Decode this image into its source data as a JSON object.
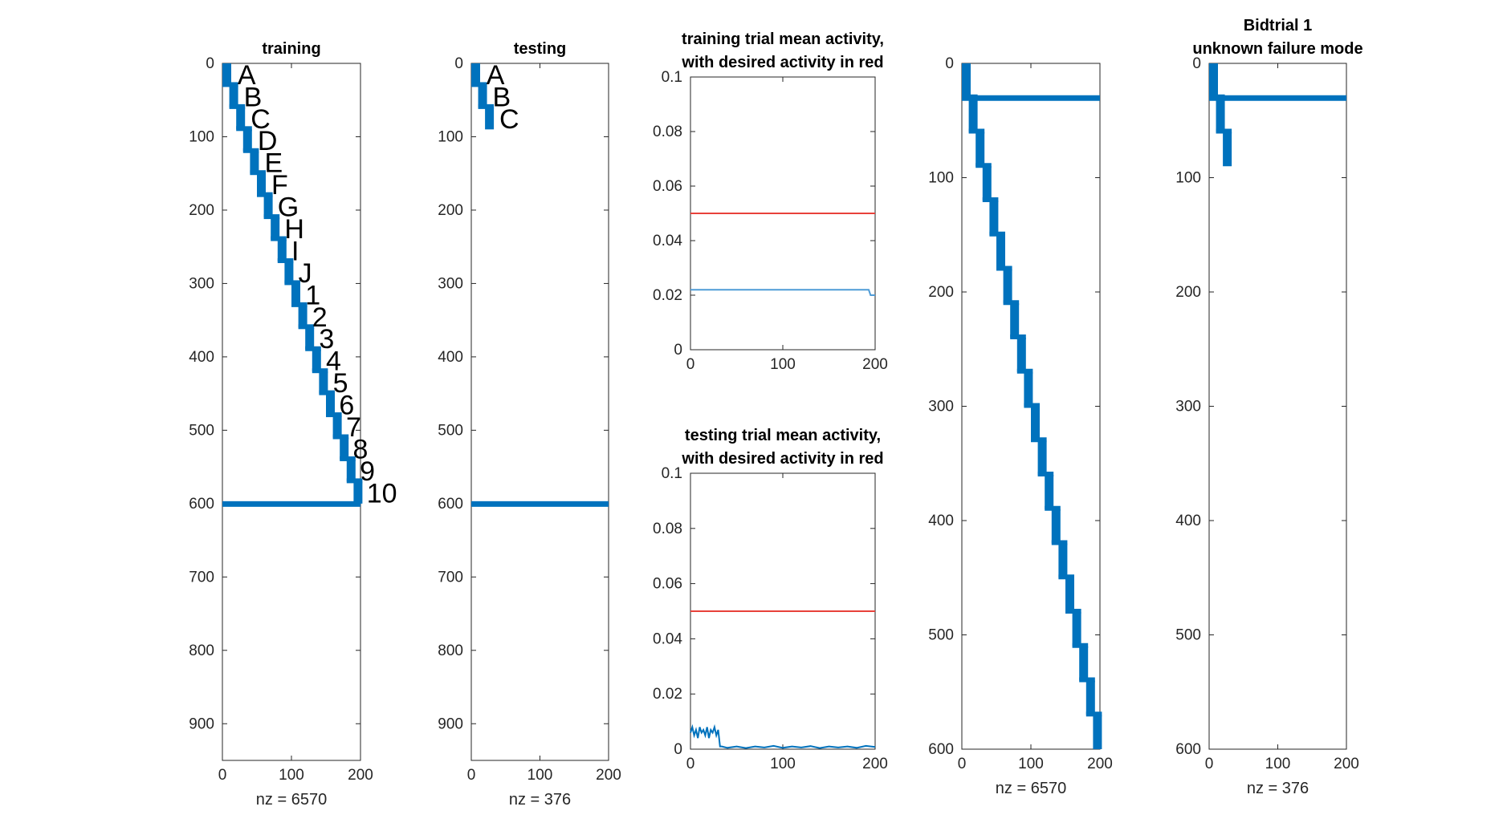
{
  "colors": {
    "blue": "#0072BD",
    "red": "#E8413A",
    "light_blue": "#4F9BD6",
    "axis": "#262626"
  },
  "chart_data": [
    {
      "type": "scatter",
      "subtype": "spy",
      "title": [
        "training"
      ],
      "xlabel": "nz = 6570",
      "xlim": [
        0,
        200
      ],
      "ylim": [
        0,
        950
      ],
      "y_reversed": true,
      "xticks": [
        0,
        100,
        200
      ],
      "yticks": [
        0,
        100,
        200,
        300,
        400,
        500,
        600,
        700,
        800,
        900
      ],
      "staircase": {
        "steps": 20,
        "step_height": 30,
        "step_width": 10,
        "x_start": 0,
        "y_start": 0
      },
      "horizontal_band": {
        "y": 600,
        "x_from": 0,
        "x_to": 200
      },
      "annotations": [
        {
          "text": "A",
          "x": 22,
          "y": 13
        },
        {
          "text": "B",
          "x": 31,
          "y": 43
        },
        {
          "text": "C",
          "x": 41,
          "y": 73
        },
        {
          "text": "D",
          "x": 51,
          "y": 103
        },
        {
          "text": "E",
          "x": 61,
          "y": 133
        },
        {
          "text": "F",
          "x": 71,
          "y": 163
        },
        {
          "text": "G",
          "x": 80,
          "y": 193
        },
        {
          "text": "H",
          "x": 90,
          "y": 223
        },
        {
          "text": "I",
          "x": 100,
          "y": 253
        },
        {
          "text": "J",
          "x": 110,
          "y": 283
        },
        {
          "text": "1",
          "x": 120,
          "y": 313
        },
        {
          "text": "2",
          "x": 130,
          "y": 343
        },
        {
          "text": "3",
          "x": 140,
          "y": 373
        },
        {
          "text": "4",
          "x": 150,
          "y": 403
        },
        {
          "text": "5",
          "x": 160,
          "y": 433
        },
        {
          "text": "6",
          "x": 169,
          "y": 463
        },
        {
          "text": "7",
          "x": 179,
          "y": 493
        },
        {
          "text": "8",
          "x": 189,
          "y": 523
        },
        {
          "text": "9",
          "x": 199,
          "y": 553
        },
        {
          "text": "10",
          "x": 209,
          "y": 583
        }
      ]
    },
    {
      "type": "scatter",
      "subtype": "spy",
      "title": [
        "testing"
      ],
      "xlabel": "nz = 376",
      "xlim": [
        0,
        200
      ],
      "ylim": [
        0,
        950
      ],
      "y_reversed": true,
      "xticks": [
        0,
        100,
        200
      ],
      "yticks": [
        0,
        100,
        200,
        300,
        400,
        500,
        600,
        700,
        800,
        900
      ],
      "staircase": {
        "steps": 3,
        "step_height": 30,
        "step_width": 10,
        "x_start": 0,
        "y_start": 0
      },
      "horizontal_band": {
        "y": 600,
        "x_from": 0,
        "x_to": 200
      },
      "annotations": [
        {
          "text": "A",
          "x": 22,
          "y": 13
        },
        {
          "text": "B",
          "x": 31,
          "y": 43
        },
        {
          "text": "C",
          "x": 41,
          "y": 73
        }
      ]
    },
    {
      "type": "line",
      "title": [
        "training trial mean activity,",
        "with desired activity in red"
      ],
      "xlim": [
        0,
        200
      ],
      "ylim": [
        0,
        0.1
      ],
      "xticks": [
        0,
        100,
        200
      ],
      "yticks": [
        0,
        0.02,
        0.04,
        0.06,
        0.08,
        0.1
      ],
      "series": [
        {
          "color": "red",
          "x": [
            0,
            200
          ],
          "y": [
            0.05,
            0.05
          ]
        },
        {
          "color": "light_blue",
          "x": [
            0,
            193,
            195,
            200
          ],
          "y": [
            0.022,
            0.022,
            0.02,
            0.02
          ]
        }
      ]
    },
    {
      "type": "line",
      "title": [
        "testing trial mean activity,",
        "with desired activity in red"
      ],
      "xlim": [
        0,
        200
      ],
      "ylim": [
        0,
        0.1
      ],
      "xticks": [
        0,
        100,
        200
      ],
      "yticks": [
        0,
        0.02,
        0.04,
        0.06,
        0.08,
        0.1
      ],
      "series": [
        {
          "color": "red",
          "x": [
            0,
            200
          ],
          "y": [
            0.05,
            0.05
          ]
        },
        {
          "color": "blue",
          "x": [
            0,
            2,
            4,
            6,
            8,
            10,
            12,
            14,
            16,
            18,
            20,
            22,
            24,
            26,
            28,
            30,
            32,
            34,
            40,
            50,
            60,
            70,
            80,
            90,
            100,
            110,
            120,
            130,
            140,
            150,
            160,
            170,
            180,
            190,
            200
          ],
          "y": [
            0.006,
            0.008,
            0.005,
            0.007,
            0.004,
            0.008,
            0.006,
            0.007,
            0.005,
            0.008,
            0.004,
            0.007,
            0.006,
            0.008,
            0.005,
            0.007,
            0.001,
            0.001,
            0.0005,
            0.001,
            0.0004,
            0.001,
            0.0006,
            0.0012,
            0.0005,
            0.001,
            0.0006,
            0.0011,
            0.0004,
            0.001,
            0.0006,
            0.001,
            0.0005,
            0.0012,
            0.0008
          ]
        }
      ]
    },
    {
      "type": "scatter",
      "subtype": "spy",
      "xlabel": "nz = 6570",
      "xlim": [
        0,
        200
      ],
      "ylim": [
        0,
        600
      ],
      "y_reversed": true,
      "xticks": [
        0,
        100,
        200
      ],
      "yticks": [
        0,
        100,
        200,
        300,
        400,
        500,
        600
      ],
      "staircase": {
        "steps": 20,
        "step_height": 30,
        "step_width": 10,
        "x_start": 0,
        "y_start": 0
      },
      "horizontal_band": {
        "y": 30,
        "x_from": 0,
        "x_to": 200
      }
    },
    {
      "type": "scatter",
      "subtype": "spy",
      "title": [
        "Bidtrial 1",
        "unknown failure mode"
      ],
      "xlabel": "nz = 376",
      "xlim": [
        0,
        200
      ],
      "ylim": [
        0,
        600
      ],
      "y_reversed": true,
      "xticks": [
        0,
        100,
        200
      ],
      "yticks": [
        0,
        100,
        200,
        300,
        400,
        500,
        600
      ],
      "staircase": {
        "steps": 3,
        "step_height": 30,
        "step_width": 10,
        "x_start": 0,
        "y_start": 0
      },
      "horizontal_band": {
        "y": 30,
        "x_from": 0,
        "x_to": 200
      }
    }
  ]
}
